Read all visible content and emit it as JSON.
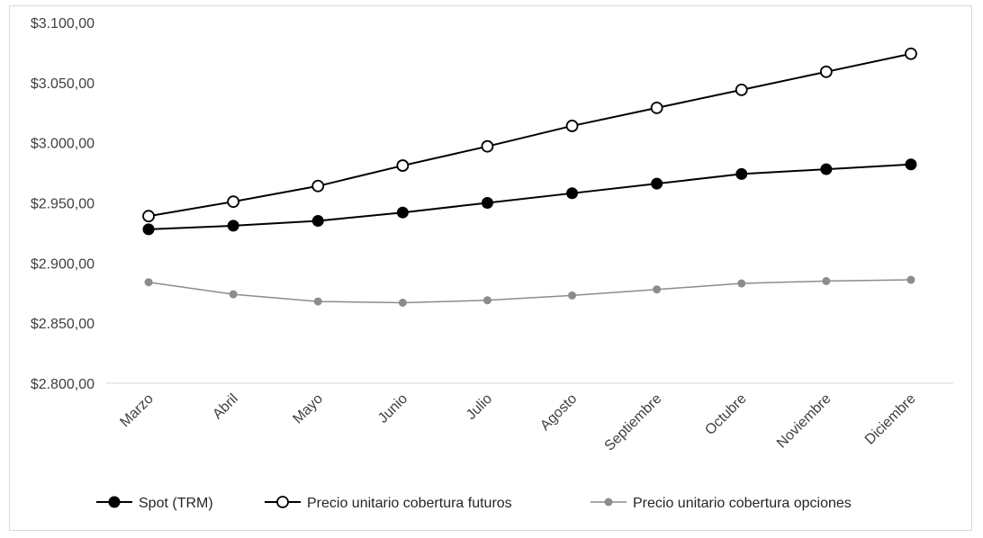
{
  "chart_data": {
    "type": "line",
    "title": "",
    "xlabel": "",
    "ylabel": "",
    "categories": [
      "Marzo",
      "Abril",
      "Mayo",
      "Junio",
      "Julio",
      "Agosto",
      "Septiembre",
      "Octubre",
      "Noviembre",
      "Diciembre"
    ],
    "ylim": [
      2800,
      3100
    ],
    "yticks": [
      2800,
      2850,
      2900,
      2950,
      3000,
      3050,
      3100
    ],
    "ytick_labels": [
      "$2.800,00",
      "$2.850,00",
      "$2.900,00",
      "$2.950,00",
      "$3.000,00",
      "$3.050,00",
      "$3.100,00"
    ],
    "grid": false,
    "legend_position": "bottom",
    "series": [
      {
        "name": "Spot (TRM)",
        "values": [
          2928,
          2931,
          2935,
          2942,
          2950,
          2958,
          2966,
          2974,
          2978,
          2982
        ],
        "color": "#000000",
        "marker": "filled"
      },
      {
        "name": "Precio unitario cobertura futuros",
        "values": [
          2939,
          2951,
          2964,
          2981,
          2997,
          3014,
          3029,
          3044,
          3059,
          3074
        ],
        "color": "#000000",
        "marker": "hollow"
      },
      {
        "name": "Precio unitario cobertura opciones",
        "values": [
          2884,
          2874,
          2868,
          2867,
          2869,
          2873,
          2878,
          2883,
          2885,
          2886
        ],
        "color": "#8c8c8c",
        "marker": "filled-small"
      }
    ]
  }
}
